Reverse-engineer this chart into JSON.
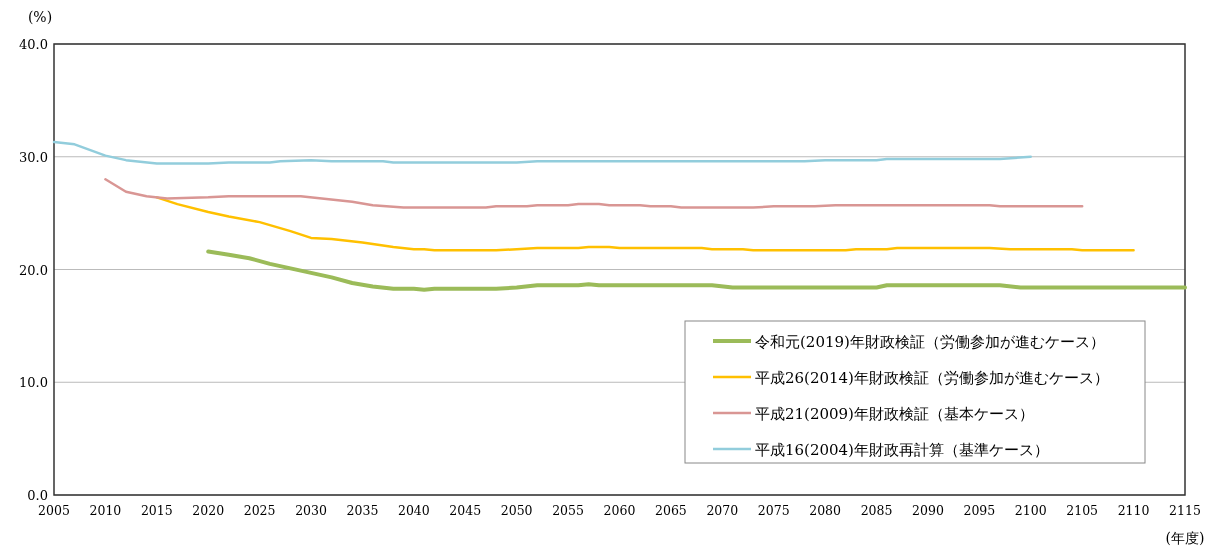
{
  "chart_data": {
    "type": "line",
    "xlabel": "(年度)",
    "ylabel": "(%)",
    "xlim": [
      2005,
      2115
    ],
    "xticks": [
      2005,
      2010,
      2015,
      2020,
      2025,
      2030,
      2035,
      2040,
      2045,
      2050,
      2055,
      2060,
      2065,
      2070,
      2075,
      2080,
      2085,
      2090,
      2095,
      2100,
      2105,
      2110,
      2115
    ],
    "ylim": [
      0,
      40
    ],
    "yticks": [
      {
        "value": 0,
        "label": "0.0"
      },
      {
        "value": 10,
        "label": "10.0"
      },
      {
        "value": 20,
        "label": "20.0"
      },
      {
        "value": 30,
        "label": "30.0"
      },
      {
        "value": 40,
        "label": "40.0"
      }
    ],
    "grid": "y",
    "legend": "bottom right",
    "series": [
      {
        "name": "令和元(2019)年財政検証（労働参加が進むケース）",
        "color": "#9bbb59",
        "x": [
          2020,
          2022,
          2024,
          2026,
          2028,
          2030,
          2032,
          2034,
          2036,
          2038,
          2040,
          2041,
          2042,
          2048,
          2050,
          2052,
          2056,
          2057,
          2058,
          2069,
          2071,
          2085,
          2086,
          2097,
          2099,
          2115
        ],
        "values": [
          21.6,
          21.3,
          21.0,
          20.5,
          20.1,
          19.7,
          19.3,
          18.8,
          18.5,
          18.3,
          18.3,
          18.2,
          18.3,
          18.3,
          18.4,
          18.6,
          18.6,
          18.7,
          18.6,
          18.6,
          18.4,
          18.4,
          18.6,
          18.6,
          18.4,
          18.4
        ]
      },
      {
        "name": "平成26(2014)年財政検証（労働参加が進むケース）",
        "color": "#ffc000",
        "x": [
          2015,
          2017,
          2020,
          2022,
          2025,
          2028,
          2030,
          2032,
          2035,
          2038,
          2040,
          2041,
          2042,
          2048,
          2050,
          2052,
          2056,
          2057,
          2059,
          2060,
          2068,
          2069,
          2072,
          2073,
          2082,
          2083,
          2086,
          2087,
          2096,
          2098,
          2104,
          2105,
          2110
        ],
        "values": [
          26.4,
          25.8,
          25.1,
          24.7,
          24.2,
          23.4,
          22.8,
          22.7,
          22.4,
          22.0,
          21.8,
          21.8,
          21.7,
          21.7,
          21.8,
          21.9,
          21.9,
          22.0,
          22.0,
          21.9,
          21.9,
          21.8,
          21.8,
          21.7,
          21.7,
          21.8,
          21.8,
          21.9,
          21.9,
          21.8,
          21.8,
          21.7,
          21.7
        ]
      },
      {
        "name": "平成21(2009)年財政検証（基本ケース）",
        "color": "#d99694",
        "x": [
          2010,
          2012,
          2014,
          2016,
          2020,
          2022,
          2029,
          2034,
          2036,
          2039,
          2047,
          2048,
          2051,
          2052,
          2055,
          2056,
          2058,
          2059,
          2062,
          2063,
          2065,
          2066,
          2073,
          2075,
          2079,
          2081,
          2096,
          2097,
          2105
        ],
        "values": [
          28.0,
          26.9,
          26.5,
          26.3,
          26.4,
          26.5,
          26.5,
          26.0,
          25.7,
          25.5,
          25.5,
          25.6,
          25.6,
          25.7,
          25.7,
          25.8,
          25.8,
          25.7,
          25.7,
          25.6,
          25.6,
          25.5,
          25.5,
          25.6,
          25.6,
          25.7,
          25.7,
          25.6,
          25.6
        ]
      },
      {
        "name": "平成16(2004)年財政再計算（基準ケース）",
        "color": "#92cddc",
        "x": [
          2005,
          2007,
          2010,
          2012,
          2015,
          2020,
          2022,
          2026,
          2027,
          2030,
          2032,
          2037,
          2038,
          2050,
          2052,
          2078,
          2080,
          2085,
          2086,
          2097,
          2100
        ],
        "values": [
          31.3,
          31.1,
          30.1,
          29.7,
          29.4,
          29.4,
          29.5,
          29.5,
          29.6,
          29.7,
          29.6,
          29.6,
          29.5,
          29.5,
          29.6,
          29.6,
          29.7,
          29.7,
          29.8,
          29.8,
          30.0
        ]
      }
    ]
  }
}
